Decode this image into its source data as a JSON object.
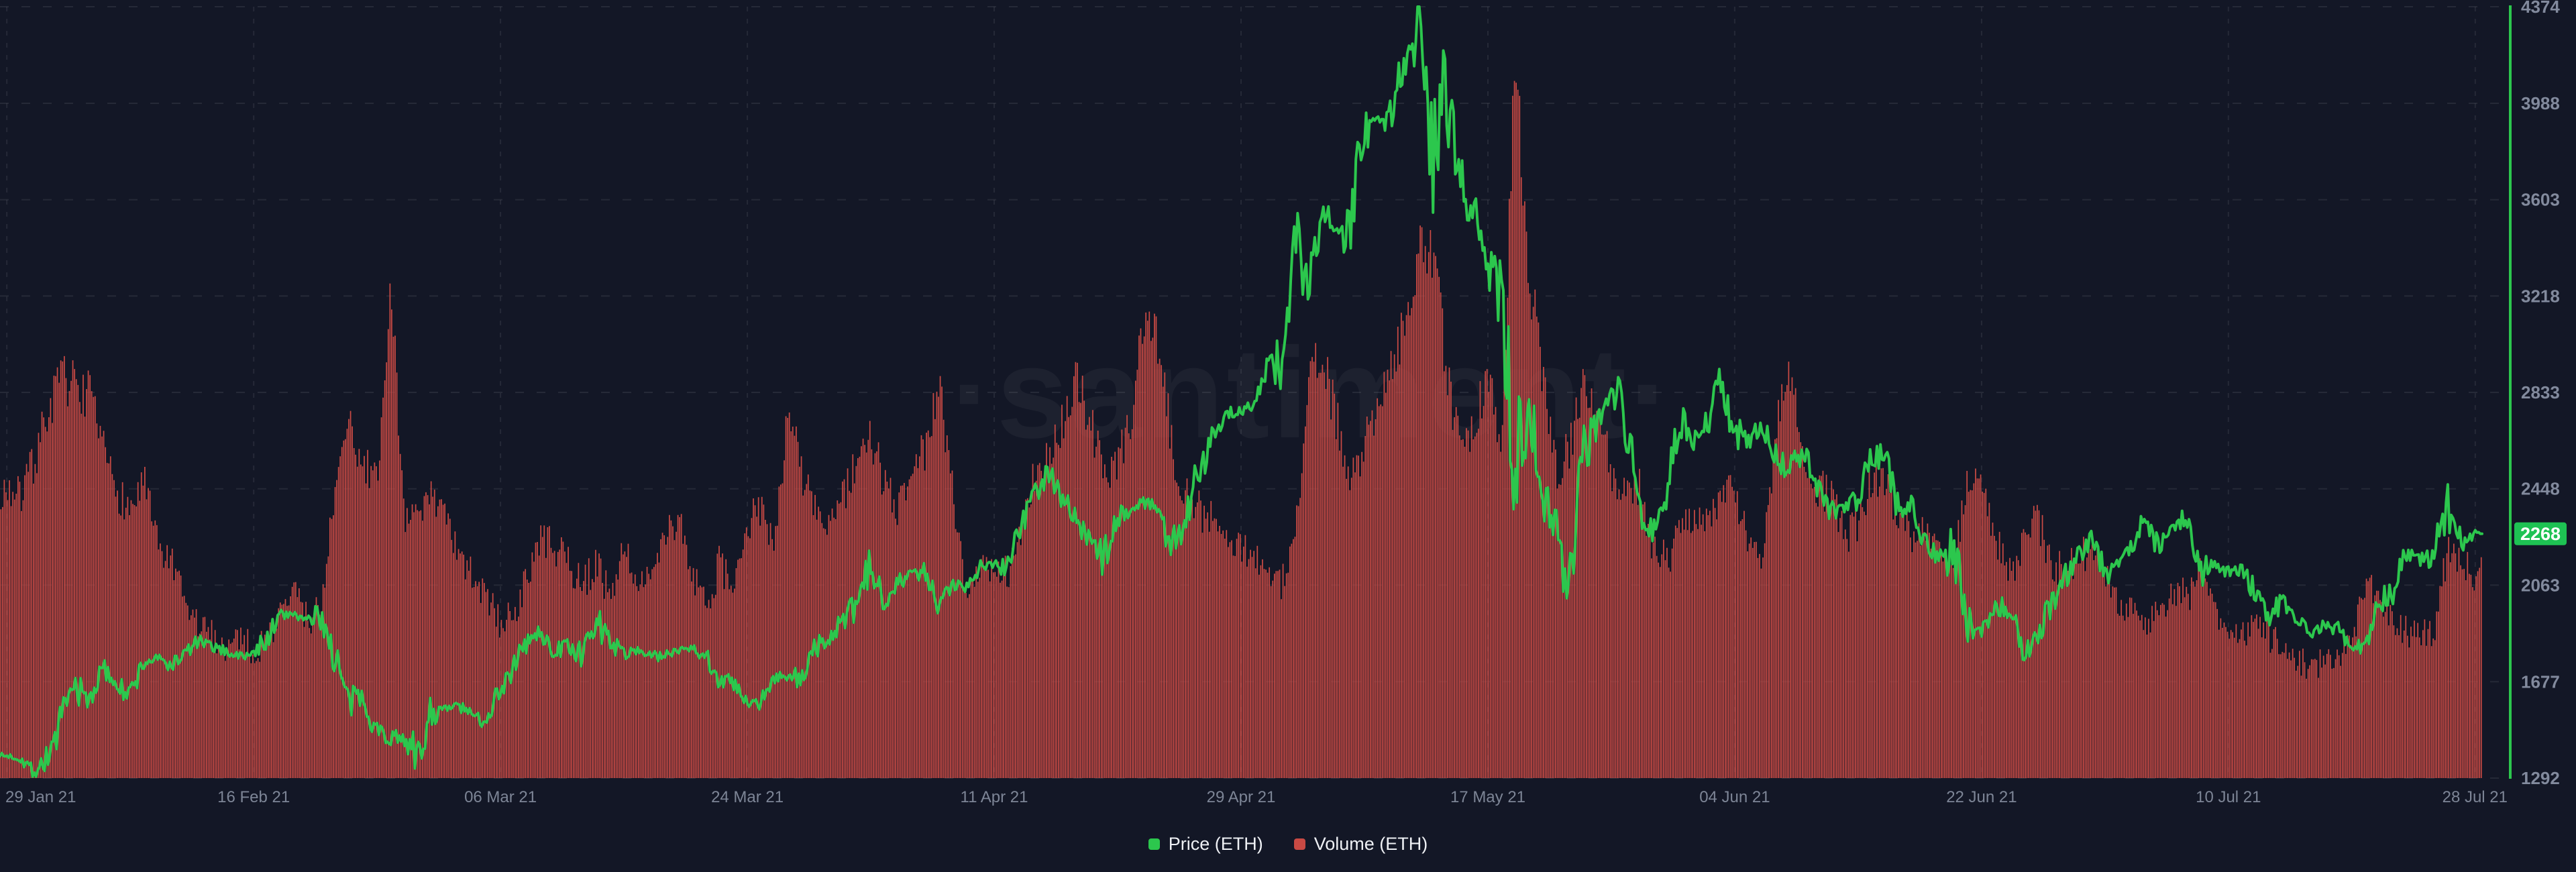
{
  "meta": {
    "watermark": "·santiment·"
  },
  "colors": {
    "page_bg": "#131726",
    "grid": "rgba(255,255,255,0.08)",
    "axis_text": "#828a9d",
    "date_text": "#7d8596",
    "price_green": "#2cc74d",
    "volume_red": "#c94a44",
    "axis_line_green": "#2cc74d",
    "badge_bg": "#1ec253",
    "badge_text": "#ffffff",
    "watermark_fill": "rgba(255,255,255,0.045)",
    "legend_text": "#eef0f4"
  },
  "chart_data": {
    "type": "line+bar",
    "title": "",
    "xlabel": "",
    "ylabel": "",
    "grid": "dashed",
    "legend_position": "bottom-center",
    "y_range": [
      1292,
      4374
    ],
    "y_tick_labels": [
      4374,
      3988,
      3603,
      3218,
      2833,
      2448,
      2063,
      1677,
      1292
    ],
    "x_tick_labels": [
      "29 Jan 21",
      "16 Feb 21",
      "06 Mar 21",
      "24 Mar 21",
      "11 Apr 21",
      "29 Apr 21",
      "17 May 21",
      "04 Jun 21",
      "22 Jun 21",
      "10 Jul 21",
      "28 Jul 21"
    ],
    "x_start_date": "29 Jan 21",
    "x_end_date": "28 Jul 21",
    "granularity": "daily",
    "last_price": 2268,
    "last_price_label": "2268",
    "series": [
      {
        "name": "Price (ETH)",
        "type": "line",
        "color": "#2cc74d",
        "values": [
          1380,
          1378,
          1316,
          1372,
          1512,
          1666,
          1596,
          1724,
          1680,
          1614,
          1752,
          1770,
          1742,
          1786,
          1840,
          1816,
          1800,
          1780,
          1782,
          1850,
          1936,
          1956,
          1914,
          1936,
          1780,
          1582,
          1622,
          1486,
          1446,
          1482,
          1336,
          1572,
          1564,
          1582,
          1540,
          1530,
          1652,
          1732,
          1836,
          1870,
          1794,
          1826,
          1766,
          1926,
          1852,
          1790,
          1806,
          1782,
          1778,
          1810,
          1816,
          1786,
          1682,
          1676,
          1586,
          1584,
          1702,
          1692,
          1688,
          1816,
          1842,
          1922,
          1972,
          2136,
          2010,
          2076,
          2112,
          2108,
          1966,
          2066,
          2064,
          2136,
          2152,
          2138,
          2300,
          2436,
          2516,
          2426,
          2322,
          2246,
          2162,
          2332,
          2362,
          2396,
          2372,
          2216,
          2322,
          2532,
          2666,
          2746,
          2756,
          2776,
          2946,
          2952,
          3432,
          3242,
          3526,
          3482,
          3482,
          3912,
          3926,
          3946,
          4172,
          4374,
          3722,
          4082,
          3652,
          3582,
          3282,
          3376,
          2442,
          2772,
          2432,
          2296,
          2112,
          2652,
          2706,
          2886,
          2742,
          2412,
          2282,
          2386,
          2712,
          2636,
          2706,
          2856,
          2686,
          2632,
          2712,
          2592,
          2512,
          2612,
          2472,
          2356,
          2372,
          2406,
          2582,
          2582,
          2366,
          2376,
          2236,
          2166,
          2246,
          1892,
          1882,
          1966,
          1986,
          1812,
          1832,
          1982,
          2086,
          2166,
          2276,
          2112,
          2156,
          2226,
          2322,
          2202,
          2326,
          2316,
          2116,
          2146,
          2112,
          2142,
          2032,
          1942,
          1996,
          1922,
          1866,
          1902,
          1896,
          1822,
          1792,
          1996,
          2026,
          2192,
          2162,
          2192,
          2392,
          2232,
          2268
        ]
      },
      {
        "name": "Volume (ETH)",
        "type": "bar",
        "color": "#c94a44",
        "values": [
          2450,
          2410,
          2560,
          2760,
          2890,
          2860,
          2820,
          2600,
          2450,
          2360,
          2480,
          2210,
          2150,
          1980,
          1900,
          1860,
          1810,
          1870,
          1790,
          1850,
          1950,
          2050,
          1910,
          2010,
          2460,
          2700,
          2560,
          2450,
          3260,
          2360,
          2300,
          2460,
          2310,
          2160,
          2100,
          2010,
          1910,
          1950,
          2100,
          2260,
          2200,
          2150,
          2060,
          2160,
          2010,
          2210,
          2110,
          2060,
          2260,
          2310,
          2110,
          1960,
          2160,
          2010,
          2310,
          2360,
          2260,
          2760,
          2510,
          2360,
          2310,
          2410,
          2560,
          2660,
          2460,
          2360,
          2560,
          2610,
          2860,
          2410,
          2060,
          2110,
          2160,
          2110,
          2310,
          2510,
          2560,
          2710,
          2880,
          2710,
          2510,
          2560,
          2710,
          3190,
          3010,
          2610,
          2410,
          2360,
          2310,
          2260,
          2210,
          2160,
          2110,
          2060,
          2310,
          2910,
          2960,
          2710,
          2510,
          2610,
          2810,
          2960,
          3110,
          3440,
          3400,
          2910,
          2610,
          2710,
          2910,
          2610,
          4200,
          3310,
          2910,
          2510,
          2610,
          2860,
          2810,
          2510,
          2410,
          2460,
          2210,
          2160,
          2260,
          2360,
          2310,
          2410,
          2460,
          2210,
          2160,
          2660,
          2960,
          2510,
          2460,
          2410,
          2260,
          2310,
          2510,
          2460,
          2360,
          2260,
          2310,
          2210,
          2160,
          2460,
          2510,
          2260,
          2110,
          2210,
          2360,
          2160,
          2110,
          2160,
          2210,
          2110,
          2010,
          1960,
          1910,
          1960,
          2060,
          2010,
          2110,
          1960,
          1910,
          1860,
          1910,
          1860,
          1810,
          1760,
          1735,
          1760,
          1785,
          1860,
          2060,
          2010,
          1910,
          1880,
          1860,
          1880,
          2210,
          2160,
          2110
        ]
      }
    ]
  }
}
